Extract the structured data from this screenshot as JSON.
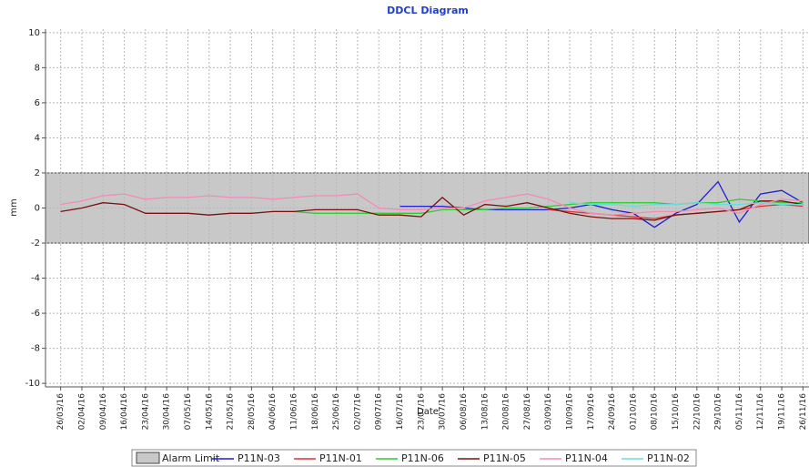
{
  "chart_data": {
    "type": "line",
    "title": "DDCL Diagram",
    "x_label": "Date",
    "y_label": "mm",
    "xlim": [
      "21/03/16",
      "28/11/16"
    ],
    "ylim": [
      -10.2,
      10.2
    ],
    "yticks": [
      -10,
      -8,
      -6,
      -4,
      -2,
      0,
      2,
      4,
      6,
      8,
      10
    ],
    "xticks": [
      "26/03/16",
      "02/04/16",
      "09/04/16",
      "16/04/16",
      "23/04/16",
      "30/04/16",
      "07/05/16",
      "14/05/16",
      "21/05/16",
      "28/05/16",
      "04/06/16",
      "11/06/16",
      "18/06/16",
      "25/06/16",
      "02/07/16",
      "09/07/16",
      "16/07/16",
      "23/07/16",
      "30/07/16",
      "06/08/16",
      "13/08/16",
      "20/08/16",
      "27/08/16",
      "03/09/16",
      "10/09/16",
      "17/09/16",
      "24/09/16",
      "01/10/16",
      "08/10/16",
      "15/10/16",
      "22/10/16",
      "29/10/16",
      "05/11/16",
      "12/11/16",
      "19/11/16",
      "26/11/16"
    ],
    "grid": true,
    "legend": "bottom",
    "alarm_limit": {
      "name": "Alarm Limit",
      "color": "#c8c8c8",
      "range": [
        -2,
        2
      ]
    },
    "x": [
      "26/03/16",
      "02/04/16",
      "09/04/16",
      "16/04/16",
      "23/04/16",
      "30/04/16",
      "07/05/16",
      "14/05/16",
      "21/05/16",
      "28/05/16",
      "04/06/16",
      "11/06/16",
      "18/06/16",
      "25/06/16",
      "02/07/16",
      "09/07/16",
      "16/07/16",
      "23/07/16",
      "30/07/16",
      "06/08/16",
      "13/08/16",
      "20/08/16",
      "27/08/16",
      "03/09/16",
      "10/09/16",
      "17/09/16",
      "24/09/16",
      "01/10/16",
      "08/10/16",
      "15/10/16",
      "22/10/16",
      "29/10/16",
      "05/11/16",
      "12/11/16",
      "19/11/16",
      "26/11/16"
    ],
    "series": [
      {
        "name": "P11N-03",
        "color": "#1f1fd0",
        "values": [
          null,
          null,
          null,
          null,
          null,
          null,
          null,
          null,
          null,
          null,
          null,
          null,
          null,
          null,
          null,
          null,
          0.1,
          0.1,
          0.1,
          0,
          -0.1,
          -0.1,
          -0.1,
          -0.1,
          0,
          0.2,
          -0.1,
          -0.3,
          -1.1,
          -0.3,
          0.2,
          1.5,
          -0.8,
          0.8,
          1.0,
          0.3
        ]
      },
      {
        "name": "P11N-01",
        "color": "#e03030",
        "values": [
          null,
          null,
          null,
          null,
          null,
          null,
          null,
          null,
          null,
          null,
          null,
          null,
          null,
          null,
          null,
          null,
          null,
          null,
          null,
          null,
          null,
          null,
          null,
          -0.1,
          -0.2,
          -0.3,
          -0.4,
          -0.5,
          -0.6,
          -0.4,
          -0.3,
          -0.2,
          -0.1,
          0.1,
          0.2,
          0.1
        ]
      },
      {
        "name": "P11N-06",
        "color": "#33cc33",
        "values": [
          null,
          null,
          null,
          null,
          null,
          null,
          null,
          null,
          null,
          null,
          -0.2,
          -0.2,
          -0.3,
          -0.3,
          -0.3,
          -0.3,
          -0.3,
          -0.3,
          -0.1,
          -0.1,
          -0.1,
          0,
          0,
          0.1,
          0.2,
          0.3,
          0.3,
          0.3,
          0.3,
          0.2,
          0.3,
          0.3,
          0.5,
          0.4,
          0.3,
          0.3
        ]
      },
      {
        "name": "P11N-05",
        "color": "#7a1010",
        "values": [
          -0.2,
          0,
          0.3,
          0.2,
          -0.3,
          -0.3,
          -0.3,
          -0.4,
          -0.3,
          -0.3,
          -0.2,
          -0.2,
          -0.1,
          -0.1,
          -0.1,
          -0.4,
          -0.4,
          -0.5,
          0.6,
          -0.4,
          0.2,
          0.1,
          0.3,
          0,
          -0.3,
          -0.5,
          -0.6,
          -0.6,
          -0.7,
          -0.4,
          -0.3,
          -0.2,
          -0.1,
          0.4,
          0.4,
          0.2
        ]
      },
      {
        "name": "P11N-04",
        "color": "#f58ab8",
        "values": [
          0.2,
          0.4,
          0.7,
          0.8,
          0.5,
          0.6,
          0.6,
          0.7,
          0.6,
          0.6,
          0.5,
          0.6,
          0.7,
          0.7,
          0.8,
          0,
          -0.1,
          -0.1,
          0,
          0,
          0.4,
          0.6,
          0.8,
          0.5,
          0,
          -0.3,
          -0.4,
          -0.3,
          -0.2,
          -0.2,
          -0.1,
          0,
          -0.3,
          0.2,
          0.5,
          0.4
        ]
      },
      {
        "name": "P11N-02",
        "color": "#66dddd",
        "values": [
          null,
          null,
          null,
          null,
          null,
          null,
          null,
          null,
          null,
          null,
          null,
          null,
          null,
          null,
          null,
          null,
          null,
          null,
          null,
          null,
          null,
          null,
          null,
          null,
          0.3,
          0.2,
          0.2,
          0.1,
          0.2,
          0.2,
          0.3,
          0.2,
          0.2,
          0.3,
          0.2,
          0.2
        ]
      }
    ]
  }
}
